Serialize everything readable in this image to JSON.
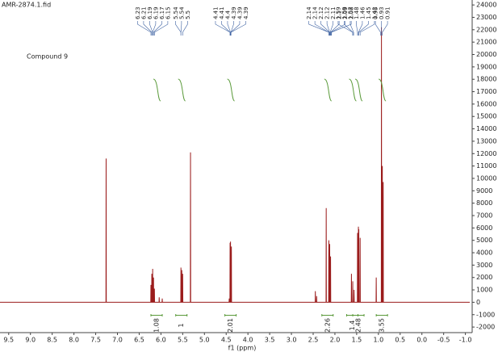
{
  "file_name": "AMR-2874.1.fid",
  "chart_data": {
    "type": "line",
    "annotation": "Compound 9",
    "xlabel": "f1 (ppm)",
    "xlim": [
      9.7,
      -1.1
    ],
    "ylim": [
      -2450,
      24400
    ],
    "xticks": [
      {
        "value": 9.5,
        "label": "9.5"
      },
      {
        "value": 9,
        "label": "9.0"
      },
      {
        "value": 8.5,
        "label": "8.5"
      },
      {
        "value": 8,
        "label": "8.0"
      },
      {
        "value": 7.5,
        "label": "7.5"
      },
      {
        "value": 7,
        "label": "7.0"
      },
      {
        "value": 6.5,
        "label": "6.5"
      },
      {
        "value": 6,
        "label": "6.0"
      },
      {
        "value": 5.5,
        "label": "5.5"
      },
      {
        "value": 5,
        "label": "5.0"
      },
      {
        "value": 4.5,
        "label": "4.5"
      },
      {
        "value": 4,
        "label": "4.0"
      },
      {
        "value": 3.5,
        "label": "3.5"
      },
      {
        "value": 3,
        "label": "3.0"
      },
      {
        "value": 2.5,
        "label": "2.5"
      },
      {
        "value": 2,
        "label": "2.0"
      },
      {
        "value": 1.5,
        "label": "1.5"
      },
      {
        "value": 1,
        "label": "1.0"
      },
      {
        "value": 0.5,
        "label": "0.5"
      },
      {
        "value": 0,
        "label": "0.0"
      },
      {
        "value": -0.5,
        "label": "-0.5"
      },
      {
        "value": -1,
        "label": "-1.0"
      }
    ],
    "yticks": [
      -2000,
      -1000,
      0,
      1000,
      2000,
      3000,
      4000,
      5000,
      6000,
      7000,
      8000,
      9000,
      10000,
      11000,
      12000,
      13000,
      14000,
      15000,
      16000,
      17000,
      18000,
      19000,
      20000,
      21000,
      22000,
      23000,
      24000
    ],
    "series": [
      {
        "color": "#9b1c1c",
        "x": [
          9.7,
          7.264,
          7.26,
          7.256,
          6.234,
          6.23,
          6.226,
          6.214,
          6.21,
          6.206,
          6.194,
          6.19,
          6.186,
          6.174,
          6.17,
          6.166,
          6.154,
          6.15,
          6.146,
          6.044,
          6.04,
          6.036,
          5.974,
          5.97,
          5.966,
          5.544,
          5.54,
          5.536,
          5.524,
          5.52,
          5.516,
          5.504,
          5.5,
          5.496,
          5.324,
          5.32,
          5.316,
          4.434,
          4.43,
          4.426,
          4.414,
          4.41,
          4.406,
          4.404,
          4.4,
          4.396,
          4.384,
          4.38,
          4.376,
          2.454,
          2.45,
          2.446,
          2.424,
          2.42,
          2.416,
          2.204,
          2.2,
          2.196,
          2.144,
          2.14,
          2.136,
          2.124,
          2.12,
          2.116,
          2.104,
          2.1,
          2.096,
          1.624,
          1.62,
          1.616,
          1.594,
          1.59,
          1.586,
          1.564,
          1.56,
          1.556,
          1.484,
          1.48,
          1.476,
          1.464,
          1.46,
          1.456,
          1.454,
          1.45,
          1.446,
          1.424,
          1.42,
          1.416,
          1.054,
          1.05,
          1.046,
          0.934,
          0.93,
          0.926,
          0.914,
          0.91,
          0.906,
          0.894,
          0.89,
          0.886,
          -1.1
        ],
        "values": [
          0,
          0,
          11600,
          0,
          0,
          1400,
          0,
          0,
          2300,
          0,
          0,
          2700,
          0,
          0,
          2000,
          0,
          0,
          1100,
          0,
          0,
          400,
          0,
          0,
          300,
          0,
          0,
          2800,
          0,
          0,
          2600,
          0,
          0,
          2300,
          0,
          0,
          12100,
          0,
          0,
          300,
          0,
          0,
          4800,
          0,
          0,
          4900,
          0,
          0,
          4500,
          0,
          0,
          900,
          0,
          0,
          500,
          0,
          0,
          7600,
          0,
          0,
          5000,
          0,
          0,
          4700,
          0,
          0,
          3700,
          0,
          0,
          2300,
          0,
          0,
          1700,
          0,
          0,
          1000,
          0,
          0,
          5600,
          0,
          0,
          6100,
          0,
          0,
          5900,
          0,
          0,
          5200,
          0,
          0,
          2000,
          0,
          0,
          22200,
          0,
          0,
          11000,
          0,
          0,
          9700,
          0,
          0
        ]
      }
    ],
    "peak_labels": [
      6.23,
      6.21,
      6.19,
      6.19,
      6.17,
      6.15,
      5.54,
      5.54,
      5.5,
      4.41,
      4.41,
      4.4,
      4.39,
      4.39,
      4.39,
      2.14,
      2.14,
      2.12,
      2.12,
      2.11,
      2.1,
      2.09,
      2.08,
      1.59,
      1.59,
      1.57,
      1.48,
      1.46,
      1.45,
      1.42,
      0.95,
      0.93,
      0.91
    ],
    "integrals": [
      {
        "x": 6.1,
        "value": 1.08
      },
      {
        "x": 5.53,
        "value": 1.0
      },
      {
        "x": 4.4,
        "value": 2.01
      },
      {
        "x": 2.17,
        "value": 2.26
      },
      {
        "x": 1.6,
        "value": 1.4
      },
      {
        "x": 1.46,
        "value": 2.48
      },
      {
        "x": 0.92,
        "value": 3.55
      }
    ]
  }
}
